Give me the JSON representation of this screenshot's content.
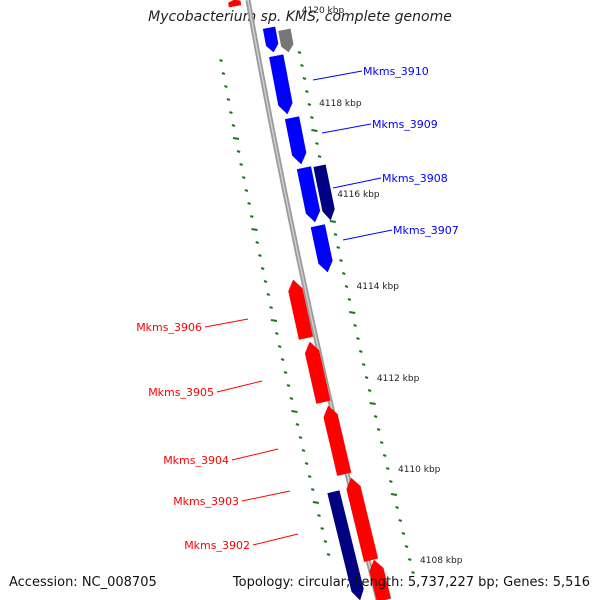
{
  "title": "Mycobacterium sp. KMS, complete genome",
  "footer": {
    "accession": "Accession: NC_008705",
    "summary": "Topology: circular; Length: 5,737,227 bp; Genes: 5,516"
  },
  "colors": {
    "forward": "#0000ff",
    "forward_dark": "#000080",
    "reverse": "#ff0000",
    "grey": "#777777",
    "tick": "#1a7a1a",
    "backbone": "#888888"
  },
  "scale_labels": [
    "4120 kbp",
    "4118 kbp",
    "4116 kbp",
    "4114 kbp",
    "4112 kbp",
    "4110 kbp",
    "4108 kbp"
  ],
  "genes_forward": [
    "Mkms_3910",
    "Mkms_3909",
    "Mkms_3908",
    "Mkms_3907"
  ],
  "genes_reverse": [
    "Mkms_3906",
    "Mkms_3905",
    "Mkms_3904",
    "Mkms_3903",
    "Mkms_3902"
  ]
}
